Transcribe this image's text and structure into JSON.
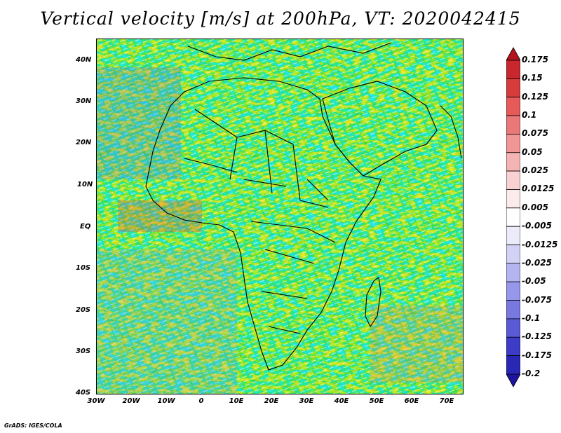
{
  "title": "Vertical velocity [m/s] at 200hPa, VT: 2020042415",
  "credit": "GrADS: IGES/COLA",
  "map": {
    "projection": "lat-lon",
    "lon_range": [
      -30,
      75
    ],
    "lat_range": [
      -40,
      45
    ],
    "field": "vertical velocity",
    "level": "200hPa",
    "valid_time": "2020042415"
  },
  "y_ticks": [
    "40N",
    "30N",
    "20N",
    "10N",
    "EQ",
    "10S",
    "20S",
    "30S",
    "40S"
  ],
  "x_ticks": [
    "30W",
    "20W",
    "10W",
    "0",
    "10E",
    "20E",
    "30E",
    "40E",
    "50E",
    "60E",
    "70E"
  ],
  "colorbar": {
    "labels": [
      "0.175",
      "0.15",
      "0.125",
      "0.1",
      "0.075",
      "0.05",
      "0.025",
      "0.0125",
      "0.005",
      "-0.005",
      "-0.0125",
      "-0.025",
      "-0.05",
      "-0.075",
      "-0.1",
      "-0.125",
      "-0.175",
      "-0.2"
    ],
    "colors": [
      "#b4141e",
      "#c8282d",
      "#d73c3c",
      "#e65a5a",
      "#eb7878",
      "#f09696",
      "#f5b4b4",
      "#f8d2d2",
      "#fcebeb",
      "#ffffff",
      "#ebebfa",
      "#d2d2f5",
      "#b4b4f0",
      "#9696eb",
      "#7878e1",
      "#5a5ad7",
      "#3c3cc8",
      "#2828b4",
      "#1e14a0"
    ]
  },
  "colors": {
    "background": "#ffffff",
    "ocean_blue": "#7d7de6",
    "land_red": "#e88a8a",
    "border": "#000000"
  }
}
